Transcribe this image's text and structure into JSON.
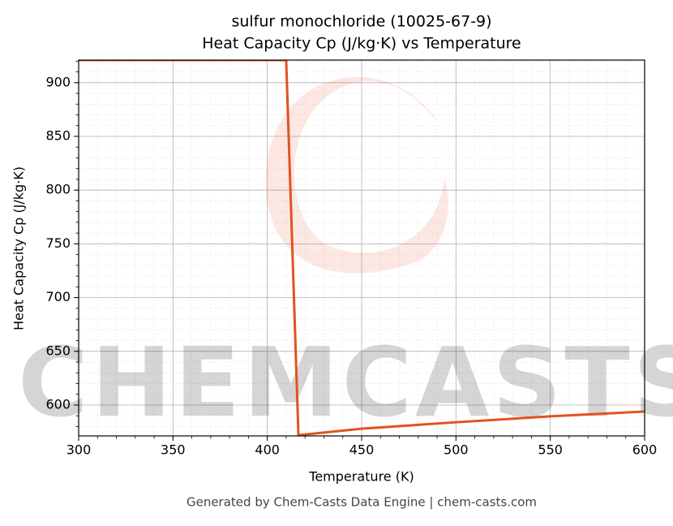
{
  "chart_data": {
    "type": "line",
    "title": "sulfur monochloride (10025-67-9)",
    "subtitle": "Heat Capacity Cp (J/kg·K) vs Temperature",
    "x_label": "Temperature (K)",
    "y_label": "Heat Capacity Cp (J/kg·K)",
    "x": [
      300,
      410,
      416.5,
      450,
      500,
      550,
      600
    ],
    "values": [
      921,
      921,
      572,
      578,
      584,
      589.5,
      594
    ],
    "color": "#e0531f",
    "xlim": [
      300,
      600
    ],
    "xticks": [
      300,
      350,
      400,
      450,
      500,
      550,
      600
    ],
    "ylim": [
      571.3,
      921
    ],
    "yticks": [
      600,
      650,
      700,
      750,
      800,
      850,
      900
    ],
    "grid": true,
    "minor_grid": true,
    "watermark": "CHEMCASTS",
    "footer": "Generated by Chem-Casts Data Engine | chem-casts.com"
  }
}
